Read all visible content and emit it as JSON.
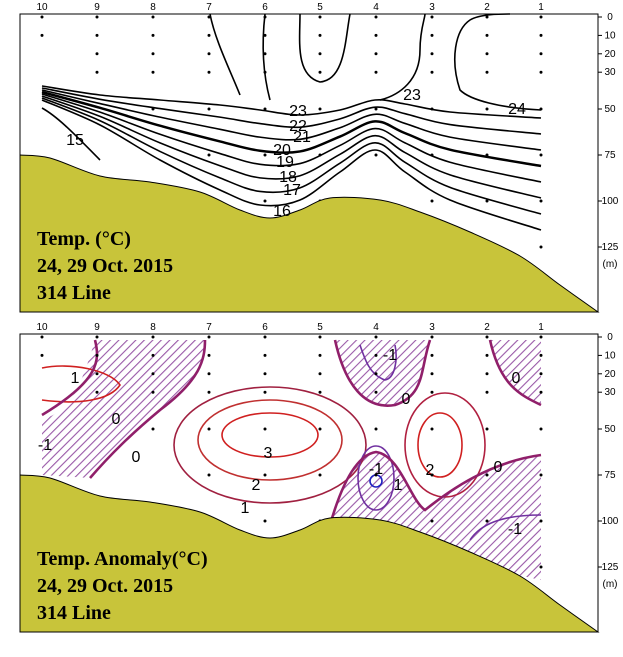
{
  "chart_data": [
    {
      "type": "contour",
      "title": "Temp. (°C)",
      "subtitle": [
        "24, 29 Oct. 2015",
        "314 Line"
      ],
      "categories": [
        "10",
        "9",
        "8",
        "7",
        "6",
        "5",
        "4",
        "3",
        "2",
        "1"
      ],
      "ylim": [
        0,
        160
      ],
      "yticks": [
        0,
        10,
        20,
        30,
        50,
        75,
        100,
        125
      ],
      "y_unit": "(m)",
      "contour_labels": [
        23,
        22,
        21,
        20,
        19,
        18,
        17,
        16,
        15,
        23,
        24
      ],
      "color": "#c8c43a"
    },
    {
      "type": "contour",
      "title": "Temp. Anomaly(°C)",
      "subtitle": [
        "24, 29 Oct. 2015",
        "314 Line"
      ],
      "categories": [
        "10",
        "9",
        "8",
        "7",
        "6",
        "5",
        "4",
        "3",
        "2",
        "1"
      ],
      "ylim": [
        0,
        160
      ],
      "yticks": [
        0,
        10,
        20,
        30,
        50,
        75,
        100,
        125
      ],
      "y_unit": "(m)",
      "contour_labels": [
        -1,
        1,
        0,
        0,
        -1,
        0,
        0,
        3,
        2,
        1,
        -1,
        1,
        2,
        0,
        -1
      ],
      "color": "#c8c43a"
    }
  ]
}
